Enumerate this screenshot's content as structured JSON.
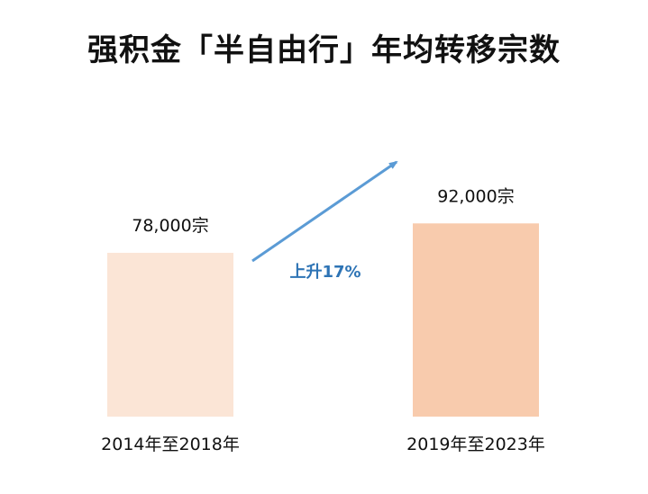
{
  "chart_data": {
    "type": "bar",
    "title": "强积金「半自由行」年均转移宗数",
    "categories": [
      "2014年至2018年",
      "2019年至2023年"
    ],
    "values": [
      78000,
      92000
    ],
    "value_labels": [
      "78,000宗",
      "92,000宗"
    ],
    "unit": "宗",
    "ylim": [
      0,
      100000
    ],
    "grid": false,
    "axes_visible": false,
    "bar_colors": [
      "#fbe5d6",
      "#f8cbad"
    ],
    "annotation": {
      "text": "上升17%",
      "color": "#2e74b5",
      "arrow_color": "#5b9bd5"
    }
  }
}
